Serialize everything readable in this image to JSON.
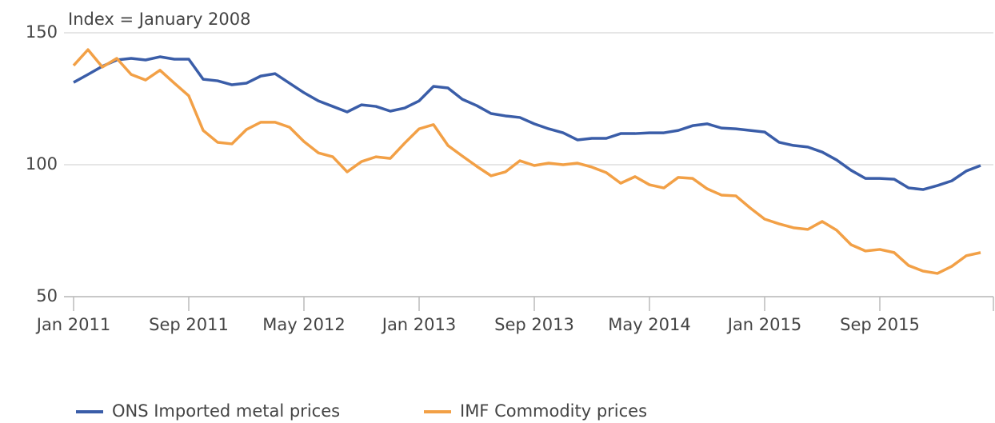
{
  "chart_data": {
    "type": "line",
    "subtitle": "Index = January 2008",
    "categories": [
      "Jan 2011",
      null,
      null,
      null,
      null,
      null,
      null,
      null,
      "Sep 2011",
      null,
      null,
      null,
      null,
      null,
      null,
      null,
      "May 2012",
      null,
      null,
      null,
      null,
      null,
      null,
      null,
      "Jan 2013",
      null,
      null,
      null,
      null,
      null,
      null,
      null,
      "Sep 2013",
      null,
      null,
      null,
      null,
      null,
      null,
      null,
      "May 2014",
      null,
      null,
      null,
      null,
      null,
      null,
      null,
      "Jan 2015",
      null,
      null,
      null,
      null,
      null,
      null,
      null,
      "Sep 2015",
      null,
      null,
      null,
      null,
      null,
      null,
      null
    ],
    "series": [
      {
        "name": "ONS Imported metal prices",
        "color": "#3a5da8",
        "values": [
          131.2,
          134.2,
          137.3,
          139.7,
          140.3,
          139.7,
          140.9,
          140,
          140,
          132.4,
          131.8,
          130.3,
          130.9,
          133.6,
          134.5,
          130.9,
          127.3,
          124.2,
          122.1,
          120,
          122.7,
          122.1,
          120.3,
          121.5,
          124.2,
          129.7,
          129.1,
          124.8,
          122.4,
          119.4,
          118.5,
          117.9,
          115.5,
          113.6,
          112.1,
          109.4,
          110,
          110,
          111.8,
          111.8,
          112.1,
          112.1,
          113,
          114.8,
          115.5,
          113.9,
          113.6,
          113,
          112.4,
          108.5,
          107.3,
          106.7,
          104.8,
          101.8,
          97.9,
          94.8,
          94.8,
          94.5,
          91.2,
          90.6,
          92.1,
          93.9,
          97.6,
          99.7
        ]
      },
      {
        "name": "IMF Commodity prices",
        "color": "#f2a046",
        "values": [
          137.6,
          143.6,
          137,
          140.3,
          134.2,
          132.1,
          135.8,
          130.9,
          126.1,
          113,
          108.5,
          107.9,
          113.3,
          116.1,
          116.1,
          114.2,
          108.8,
          104.5,
          103,
          97.3,
          101.2,
          103,
          102.4,
          108.2,
          113.6,
          115.2,
          107.3,
          103.3,
          99.4,
          95.8,
          97.3,
          101.5,
          99.7,
          100.6,
          100,
          100.6,
          99.1,
          97,
          93,
          95.5,
          92.4,
          91.2,
          95.2,
          94.8,
          90.9,
          88.5,
          88.2,
          83.6,
          79.4,
          77.6,
          76.1,
          75.5,
          78.5,
          75.2,
          69.7,
          67.3,
          67.9,
          66.7,
          61.8,
          59.7,
          58.8,
          61.5,
          65.5,
          66.7
        ]
      }
    ],
    "ylim": [
      50,
      150
    ],
    "yticks": [
      50,
      100,
      150
    ],
    "grid": true
  }
}
